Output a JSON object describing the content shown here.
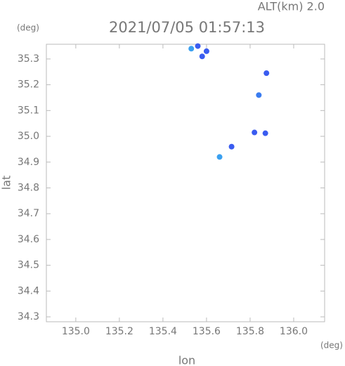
{
  "chart_data": {
    "type": "scatter",
    "title": "2021/07/05 01:57:13",
    "subtitle": "ALT(km) 2.0",
    "y_unit": "(deg)",
    "x_unit": "(deg)",
    "xlabel": "lon",
    "ylabel": "lat",
    "x": [
      135.53,
      135.56,
      135.6,
      135.58,
      135.875,
      135.84,
      135.82,
      135.87,
      135.715,
      135.66
    ],
    "y": [
      35.34,
      35.35,
      35.33,
      35.31,
      35.245,
      35.16,
      35.015,
      35.012,
      34.96,
      34.92
    ],
    "point_colors": [
      "#3aa0f0",
      "#3a5cf0",
      "#3a5cf0",
      "#3a5cf0",
      "#3a5cf0",
      "#3a7cf0",
      "#3a5cf0",
      "#3a5cf0",
      "#3a5cf0",
      "#3aa0f0"
    ],
    "xlim": [
      134.865,
      136.142
    ],
    "ylim": [
      34.281,
      35.357
    ],
    "xticks": [
      {
        "value": 135,
        "label": "135.0"
      },
      135.2,
      135.4,
      135.6,
      135.8,
      {
        "value": 136,
        "label": "136.0"
      }
    ],
    "yticks": [
      34.3,
      34.4,
      34.5,
      34.6,
      34.7,
      34.8,
      34.9,
      {
        "value": 35,
        "label": "35.0"
      },
      35.1,
      35.2,
      35.3
    ]
  }
}
